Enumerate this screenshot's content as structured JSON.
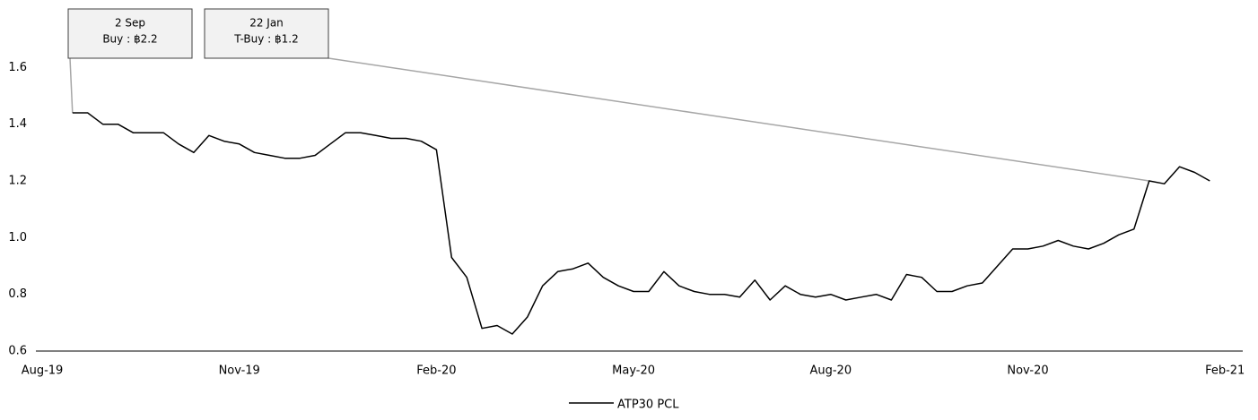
{
  "chart_data": {
    "type": "line",
    "categories": [
      "Aug-19",
      null,
      null,
      null,
      null,
      null,
      null,
      null,
      null,
      null,
      null,
      null,
      null,
      "Nov-19",
      null,
      null,
      null,
      null,
      null,
      null,
      null,
      null,
      null,
      null,
      null,
      null,
      "Feb-20",
      null,
      null,
      null,
      null,
      null,
      null,
      null,
      null,
      null,
      null,
      null,
      null,
      "May-20",
      null,
      null,
      null,
      null,
      null,
      null,
      null,
      null,
      null,
      null,
      null,
      null,
      "Aug-20",
      null,
      null,
      null,
      null,
      null,
      null,
      null,
      null,
      null,
      null,
      null,
      null,
      "Nov-20",
      null,
      null,
      null,
      null,
      null,
      null,
      null,
      null,
      null,
      null,
      null,
      null,
      "Feb-21"
    ],
    "series": [
      {
        "name": "ATP30 PCL",
        "color": "#000000",
        "values": [
          null,
          null,
          1.44,
          1.44,
          1.4,
          1.4,
          1.37,
          1.37,
          1.37,
          1.33,
          1.3,
          1.36,
          1.34,
          1.33,
          1.3,
          1.29,
          1.28,
          1.28,
          1.29,
          1.33,
          1.37,
          1.37,
          1.36,
          1.35,
          1.35,
          1.34,
          1.31,
          0.93,
          0.86,
          0.68,
          0.69,
          0.66,
          0.72,
          0.83,
          0.88,
          0.89,
          0.91,
          0.86,
          0.83,
          0.81,
          0.81,
          0.88,
          0.83,
          0.81,
          0.8,
          0.8,
          0.79,
          0.85,
          0.78,
          0.83,
          0.8,
          0.79,
          0.8,
          0.78,
          0.79,
          0.8,
          0.78,
          0.87,
          0.86,
          0.81,
          0.81,
          0.83,
          0.84,
          0.9,
          0.96,
          0.96,
          0.97,
          0.99,
          0.97,
          0.96,
          0.98,
          1.01,
          1.03,
          1.2,
          1.19,
          1.25,
          1.23,
          1.2,
          null
        ]
      }
    ],
    "ylim": [
      0.6,
      1.8
    ],
    "yticks": [
      0.6,
      0.8,
      {
        "value": 1,
        "label": "1.0"
      },
      1.2,
      1.4,
      1.6
    ],
    "grid": false,
    "legend": "bottom",
    "annotations": [
      {
        "date": "2 Sep",
        "text": "Buy : ฿2.2"
      },
      {
        "date": "22 Jan",
        "text": "T-Buy : ฿1.2"
      }
    ]
  }
}
